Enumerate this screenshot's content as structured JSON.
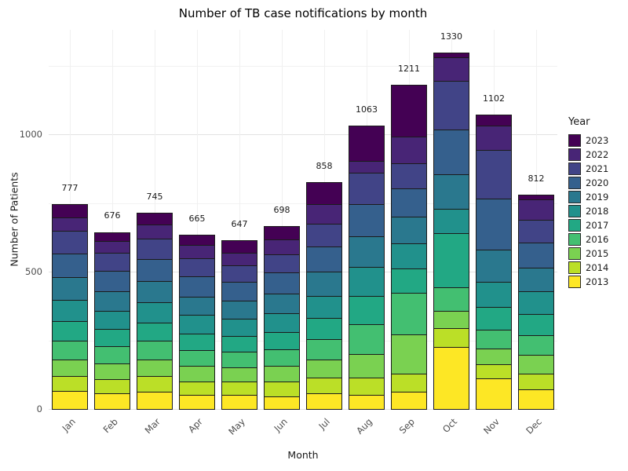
{
  "chart_data": {
    "type": "bar",
    "stacked": true,
    "title": "Number of TB case notifications by month",
    "xlabel": "Month",
    "ylabel": "Number of Patients",
    "legend_title": "Year",
    "legend_position": "right",
    "categories": [
      "Jan",
      "Feb",
      "Mar",
      "Apr",
      "May",
      "Jun",
      "Jul",
      "Aug",
      "Sep",
      "Oct",
      "Nov",
      "Dec"
    ],
    "totals": [
      777,
      676,
      745,
      665,
      647,
      698,
      858,
      1063,
      1211,
      1330,
      1102,
      812
    ],
    "ylim": [
      0,
      1383
    ],
    "yticks": [
      0,
      500,
      1000
    ],
    "grid_major": [
      0,
      500,
      1000
    ],
    "grid_minor": [
      250,
      750,
      1250
    ],
    "legend_order": [
      "2023",
      "2022",
      "2021",
      "2020",
      "2019",
      "2018",
      "2017",
      "2016",
      "2015",
      "2014",
      "2013"
    ],
    "series": [
      {
        "name": "2013",
        "color": "#FDE725",
        "values": [
          70,
          60,
          65,
          55,
          55,
          50,
          60,
          55,
          65,
          230,
          115,
          75
        ]
      },
      {
        "name": "2014",
        "color": "#BBDF27",
        "values": [
          55,
          55,
          60,
          50,
          50,
          55,
          60,
          65,
          70,
          70,
          55,
          60
        ]
      },
      {
        "name": "2015",
        "color": "#7AD151",
        "values": [
          65,
          60,
          65,
          60,
          55,
          60,
          70,
          90,
          145,
          65,
          60,
          70
        ]
      },
      {
        "name": "2016",
        "color": "#43BF71",
        "values": [
          70,
          65,
          70,
          60,
          60,
          65,
          75,
          110,
          155,
          90,
          70,
          75
        ]
      },
      {
        "name": "2017",
        "color": "#22A884",
        "values": [
          75,
          65,
          70,
          65,
          60,
          65,
          80,
          105,
          90,
          200,
          85,
          80
        ]
      },
      {
        "name": "2018",
        "color": "#21918C",
        "values": [
          80,
          70,
          75,
          70,
          65,
          70,
          85,
          110,
          95,
          90,
          95,
          85
        ]
      },
      {
        "name": "2019",
        "color": "#2A788E",
        "values": [
          85,
          75,
          80,
          70,
          70,
          75,
          90,
          115,
          100,
          130,
          120,
          90
        ]
      },
      {
        "name": "2020",
        "color": "#35608D",
        "values": [
          90,
          75,
          85,
          75,
          70,
          80,
          95,
          120,
          105,
          165,
          190,
          95
        ]
      },
      {
        "name": "2021",
        "color": "#414487",
        "values": [
          85,
          70,
          75,
          70,
          65,
          70,
          85,
          115,
          95,
          180,
          180,
          85
        ]
      },
      {
        "name": "2022",
        "color": "#482576",
        "values": [
          50,
          45,
          55,
          50,
          47,
          55,
          75,
          48,
          100,
          90,
          90,
          77
        ]
      },
      {
        "name": "2023",
        "color": "#440154",
        "values": [
          52,
          36,
          45,
          40,
          50,
          53,
          83,
          130,
          191,
          20,
          42,
          20
        ]
      }
    ]
  }
}
